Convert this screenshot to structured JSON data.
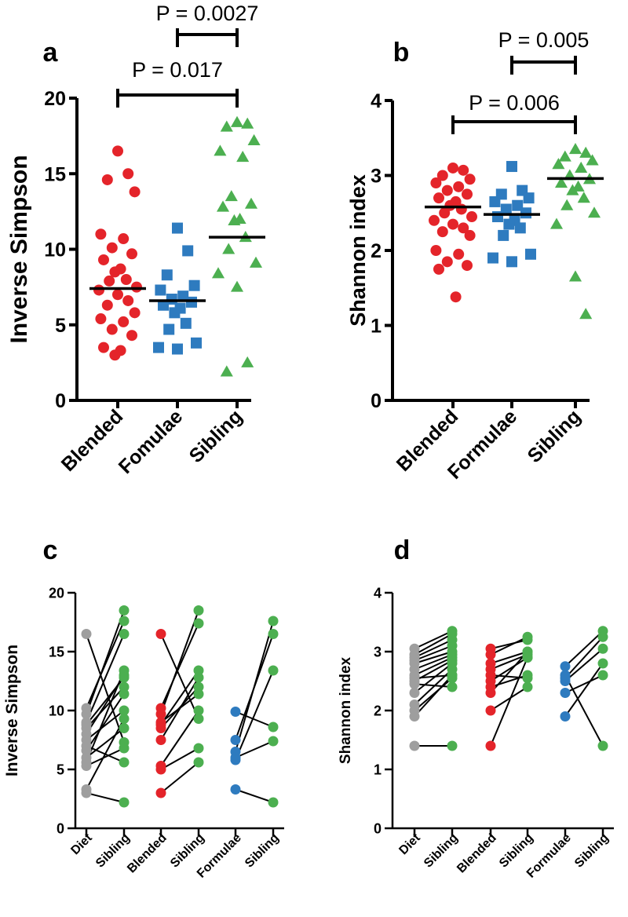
{
  "colors": {
    "blended": "#e4242a",
    "formulae": "#2e7bbf",
    "sibling": "#4caf50",
    "diet": "#9e9e9e",
    "axis": "#000000"
  },
  "chart_data": [
    {
      "panel": "a",
      "type": "scatter",
      "ylabel": "Inverse Simpson",
      "ylim": [
        0,
        20
      ],
      "yticks": [
        0,
        5,
        10,
        15,
        20
      ],
      "categories": [
        "Blended",
        "Fomulae",
        "Sibling"
      ],
      "series": [
        {
          "name": "Blended",
          "marker": "circle",
          "color_key": "blended",
          "mean": 7.4,
          "values": [
            16.5,
            15.0,
            14.6,
            13.8,
            11.0,
            10.7,
            10.1,
            9.7,
            9.3,
            8.7,
            8.5,
            8.0,
            7.9,
            7.5,
            7.3,
            7.0,
            6.6,
            6.3,
            5.8,
            5.4,
            5.2,
            4.7,
            4.3,
            3.5,
            3.3,
            3.0
          ]
        },
        {
          "name": "Fomulae",
          "marker": "square",
          "color_key": "formulae",
          "mean": 6.6,
          "values": [
            11.4,
            9.9,
            8.3,
            7.6,
            7.3,
            6.9,
            6.7,
            6.5,
            6.3,
            6.1,
            5.8,
            5.1,
            4.7,
            3.8,
            3.5,
            3.4
          ]
        },
        {
          "name": "Sibling",
          "marker": "triangle",
          "color_key": "sibling",
          "mean": 10.8,
          "values": [
            18.4,
            18.3,
            18.1,
            17.2,
            16.5,
            16.1,
            13.5,
            13.0,
            12.8,
            12.0,
            11.9,
            10.8,
            10.0,
            9.1,
            8.4,
            7.5,
            2.5,
            1.9
          ]
        }
      ],
      "comparisons": [
        {
          "from": "Blended",
          "to": "Sibling",
          "label": "P = 0.017"
        },
        {
          "from": "Fomulae",
          "to": "Sibling",
          "label": "P = 0.0027"
        }
      ]
    },
    {
      "panel": "b",
      "type": "scatter",
      "ylabel": "Shannon index",
      "ylim": [
        0,
        4
      ],
      "yticks": [
        0,
        1,
        2,
        3,
        4
      ],
      "categories": [
        "Blended",
        "Formulae",
        "Sibling"
      ],
      "series": [
        {
          "name": "Blended",
          "marker": "circle",
          "color_key": "blended",
          "mean": 2.58,
          "values": [
            3.1,
            3.07,
            3.0,
            2.95,
            2.9,
            2.85,
            2.8,
            2.75,
            2.7,
            2.65,
            2.6,
            2.55,
            2.5,
            2.45,
            2.4,
            2.35,
            2.3,
            2.25,
            2.2,
            2.0,
            1.95,
            1.85,
            1.8,
            1.75,
            1.38
          ]
        },
        {
          "name": "Formulae",
          "marker": "square",
          "color_key": "formulae",
          "mean": 2.48,
          "values": [
            3.12,
            2.8,
            2.75,
            2.7,
            2.65,
            2.6,
            2.55,
            2.5,
            2.45,
            2.4,
            2.35,
            2.3,
            2.2,
            1.95,
            1.9,
            1.85
          ]
        },
        {
          "name": "Sibling",
          "marker": "triangle",
          "color_key": "sibling",
          "mean": 2.96,
          "values": [
            3.35,
            3.3,
            3.25,
            3.2,
            3.15,
            3.1,
            3.0,
            2.95,
            2.9,
            2.85,
            2.8,
            2.7,
            2.6,
            2.5,
            2.35,
            1.65,
            1.15
          ]
        }
      ],
      "comparisons": [
        {
          "from": "Blended",
          "to": "Sibling",
          "label": "P = 0.006"
        },
        {
          "from": "Formulae",
          "to": "Sibling",
          "label": "P = 0.005"
        }
      ]
    },
    {
      "panel": "c",
      "type": "line",
      "ylabel": "Inverse  Simpson",
      "ylim": [
        0,
        20
      ],
      "yticks": [
        0,
        5,
        10,
        15,
        20
      ],
      "categories": [
        "Diet",
        "Sibling",
        "Blended",
        "Sibling",
        "Formulae",
        "Sibling"
      ],
      "groups": [
        {
          "left_color_key": "diet",
          "right_color_key": "sibling",
          "pairs": [
            [
              16.5,
              7.3
            ],
            [
              10.2,
              17.6
            ],
            [
              9.7,
              18.5
            ],
            [
              9.0,
              16.5
            ],
            [
              8.5,
              12.0
            ],
            [
              8.0,
              13.0
            ],
            [
              7.5,
              10.0
            ],
            [
              6.6,
              11.4
            ],
            [
              6.0,
              8.5
            ],
            [
              5.6,
              13.4
            ],
            [
              5.3,
              6.8
            ],
            [
              3.3,
              9.3
            ],
            [
              3.0,
              2.2
            ],
            [
              7.0,
              5.6
            ],
            [
              8.8,
              12.8
            ]
          ]
        },
        {
          "left_color_key": "blended",
          "right_color_key": "sibling",
          "pairs": [
            [
              16.5,
              9.3
            ],
            [
              10.2,
              17.4
            ],
            [
              9.7,
              18.5
            ],
            [
              8.8,
              13.4
            ],
            [
              8.5,
              12.0
            ],
            [
              7.5,
              12.8
            ],
            [
              5.3,
              10.0
            ],
            [
              5.0,
              6.8
            ],
            [
              3.0,
              5.6
            ],
            [
              9.0,
              11.4
            ]
          ]
        },
        {
          "left_color_key": "formulae",
          "right_color_key": "sibling",
          "pairs": [
            [
              9.9,
              8.6
            ],
            [
              7.5,
              16.5
            ],
            [
              6.5,
              17.6
            ],
            [
              5.8,
              13.4
            ],
            [
              3.3,
              2.2
            ],
            [
              6.0,
              7.4
            ]
          ]
        }
      ]
    },
    {
      "panel": "d",
      "type": "line",
      "ylabel": "Shannon index",
      "ylim": [
        0,
        4
      ],
      "yticks": [
        0,
        1,
        2,
        3,
        4
      ],
      "categories": [
        "Diet",
        "Sibling",
        "Blended",
        "Sibling",
        "Formulae",
        "Sibling"
      ],
      "groups": [
        {
          "left_color_key": "diet",
          "right_color_key": "sibling",
          "pairs": [
            [
              3.05,
              3.35
            ],
            [
              2.95,
              3.3
            ],
            [
              2.9,
              3.2
            ],
            [
              2.85,
              3.1
            ],
            [
              2.8,
              3.0
            ],
            [
              2.7,
              2.95
            ],
            [
              2.6,
              2.9
            ],
            [
              2.55,
              2.6
            ],
            [
              2.5,
              2.85
            ],
            [
              2.45,
              2.4
            ],
            [
              2.3,
              2.8
            ],
            [
              2.1,
              2.7
            ],
            [
              2.0,
              2.55
            ],
            [
              1.9,
              2.6
            ],
            [
              1.4,
              1.4
            ]
          ]
        },
        {
          "left_color_key": "blended",
          "right_color_key": "sibling",
          "pairs": [
            [
              3.05,
              3.2
            ],
            [
              2.95,
              3.25
            ],
            [
              2.8,
              3.0
            ],
            [
              2.7,
              2.95
            ],
            [
              2.6,
              2.55
            ],
            [
              2.5,
              2.9
            ],
            [
              2.4,
              2.6
            ],
            [
              2.0,
              2.4
            ],
            [
              1.4,
              2.9
            ],
            [
              2.3,
              3.0
            ]
          ]
        },
        {
          "left_color_key": "formulae",
          "right_color_key": "sibling",
          "pairs": [
            [
              2.75,
              3.35
            ],
            [
              2.55,
              3.25
            ],
            [
              2.5,
              3.05
            ],
            [
              2.3,
              2.6
            ],
            [
              1.9,
              2.8
            ],
            [
              2.6,
              1.4
            ]
          ]
        }
      ]
    }
  ]
}
